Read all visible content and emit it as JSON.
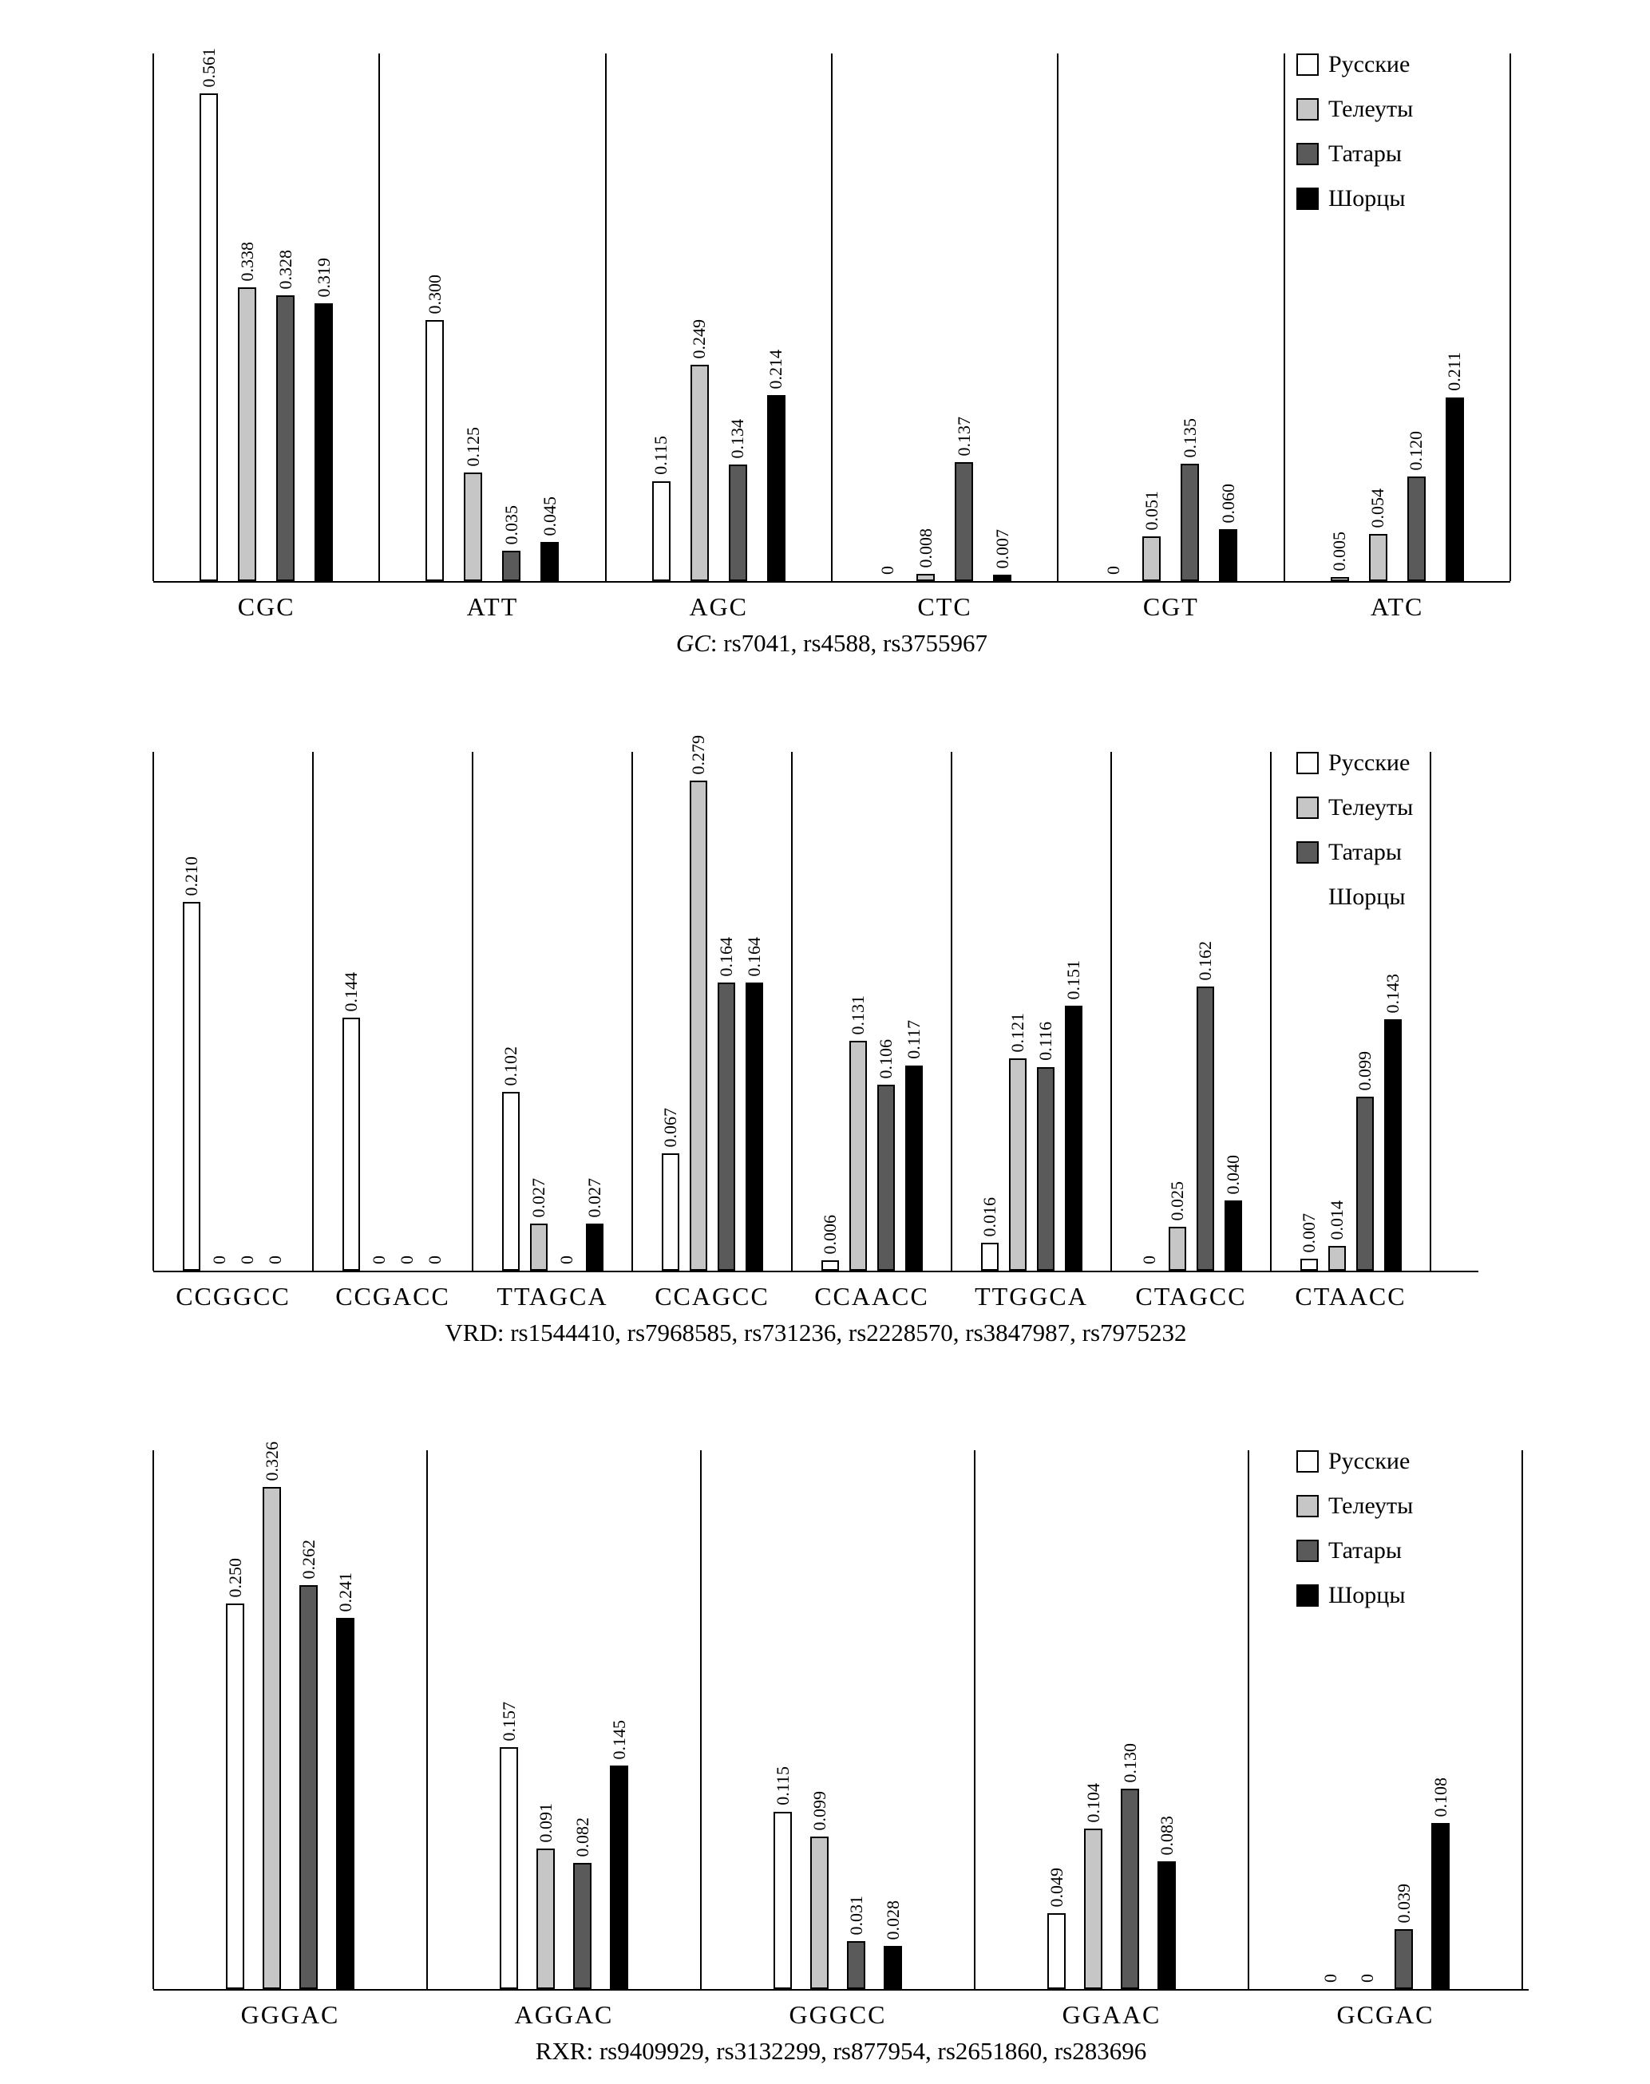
{
  "figure": {
    "background": "#ffffff",
    "populations": [
      "Русские",
      "Телеуты",
      "Татары",
      "Шорцы"
    ],
    "series_colors": [
      "#ffffff",
      "#c6c6c6",
      "#5a5a5a",
      "#000000"
    ]
  },
  "chart_data": [
    {
      "type": "bar",
      "subtitle_prefix": "GC",
      "subtitle_prefix_italic": true,
      "subtitle_rest": ": rs7041, rs4588, rs3755967",
      "categories": [
        "CGC",
        "ATT",
        "AGC",
        "CTC",
        "CGT",
        "ATC"
      ],
      "ylim": [
        0,
        0.6
      ],
      "grid": "vertical-separators",
      "legend": {
        "position": "top-right",
        "labels": [
          "Русские",
          "Телеуты",
          "Татары",
          "Шорцы"
        ],
        "swatches": [
          true,
          true,
          true,
          true
        ]
      },
      "series": [
        {
          "name": "Русские",
          "color": "#ffffff",
          "values": [
            0.561,
            0.3,
            0.115,
            0,
            0,
            0.005
          ],
          "labels": [
            "0.561",
            "0.300",
            "0.115",
            "0",
            "0",
            "0.005"
          ]
        },
        {
          "name": "Телеуты",
          "color": "#c6c6c6",
          "values": [
            0.338,
            0.125,
            0.249,
            0.008,
            0.051,
            0.054
          ],
          "labels": [
            "0.338",
            "0.125",
            "0.249",
            "0.008",
            "0.051",
            "0.054"
          ]
        },
        {
          "name": "Татары",
          "color": "#5a5a5a",
          "values": [
            0.328,
            0.035,
            0.134,
            0.137,
            0.135,
            0.12
          ],
          "labels": [
            "0.328",
            "0.035",
            "0.134",
            "0.137",
            "0.135",
            "0.120"
          ]
        },
        {
          "name": "Шорцы",
          "color": "#000000",
          "values": [
            0.319,
            0.045,
            0.214,
            0.007,
            0.06,
            0.211
          ],
          "labels": [
            "0.319",
            "0.045",
            "0.214",
            "0.007",
            "0.060",
            "0.211"
          ]
        }
      ]
    },
    {
      "type": "bar",
      "subtitle_prefix": "VRD",
      "subtitle_prefix_italic": false,
      "subtitle_rest": ": rs1544410, rs7968585, rs731236, rs2228570, rs3847987, rs7975232",
      "categories": [
        "CCGGCC",
        "CCGACC",
        "TTAGCA",
        "CCAGCC",
        "CCAACC",
        "TTGGCA",
        "CTAGCC",
        "CTAACC"
      ],
      "ylim": [
        0,
        0.3
      ],
      "grid": "vertical-separators",
      "legend": {
        "position": "top-right",
        "labels": [
          "Русские",
          "Телеуты",
          "Татары",
          "Шорцы"
        ],
        "swatches": [
          true,
          true,
          true,
          false
        ]
      },
      "series": [
        {
          "name": "Русские",
          "color": "#ffffff",
          "values": [
            0.21,
            0.144,
            0.102,
            0.067,
            0.006,
            0.016,
            0,
            0.007
          ],
          "labels": [
            "0.210",
            "0.144",
            "0.102",
            "0.067",
            "0.006",
            "0.016",
            "0",
            "0.007"
          ]
        },
        {
          "name": "Телеуты",
          "color": "#c6c6c6",
          "values": [
            0,
            0,
            0.027,
            0.279,
            0.131,
            0.121,
            0.025,
            0.014
          ],
          "labels": [
            "0",
            "0",
            "0.027",
            "0.279",
            "0.131",
            "0.121",
            "0.025",
            "0.014"
          ]
        },
        {
          "name": "Татары",
          "color": "#5a5a5a",
          "values": [
            0,
            0,
            0,
            0.164,
            0.106,
            0.116,
            0.162,
            0.099
          ],
          "labels": [
            "0",
            "0",
            "0",
            "0.164",
            "0.106",
            "0.116",
            "0.162",
            "0.099"
          ]
        },
        {
          "name": "Шорцы",
          "color": "#000000",
          "values": [
            0,
            0,
            0.027,
            0.164,
            0.117,
            0.151,
            0.04,
            0.143
          ],
          "labels": [
            "0",
            "0",
            "0.027",
            "0.164",
            "0.117",
            "0.151",
            "0.040",
            "0.143"
          ]
        }
      ]
    },
    {
      "type": "bar",
      "subtitle_prefix": "RXR",
      "subtitle_prefix_italic": false,
      "subtitle_rest": ": rs9409929, rs3132299, rs877954, rs2651860, rs283696",
      "categories": [
        "GGGAC",
        "AGGAC",
        "GGGCC",
        "GGAAC",
        "GCGAC"
      ],
      "ylim": [
        0,
        0.35
      ],
      "grid": "vertical-separators",
      "legend": {
        "position": "top-right",
        "labels": [
          "Русские",
          "Телеуты",
          "Татары",
          "Шорцы"
        ],
        "swatches": [
          true,
          true,
          true,
          true
        ]
      },
      "series": [
        {
          "name": "Русские",
          "color": "#ffffff",
          "values": [
            0.25,
            0.157,
            0.115,
            0.049,
            0
          ],
          "labels": [
            "0.250",
            "0.157",
            "0.115",
            "0.049",
            "0"
          ]
        },
        {
          "name": "Телеуты",
          "color": "#c6c6c6",
          "values": [
            0.326,
            0.091,
            0.099,
            0.104,
            0
          ],
          "labels": [
            "0.326",
            "0.091",
            "0.099",
            "0.104",
            "0"
          ]
        },
        {
          "name": "Татары",
          "color": "#5a5a5a",
          "values": [
            0.262,
            0.082,
            0.031,
            0.13,
            0.039
          ],
          "labels": [
            "0.262",
            "0.082",
            "0.031",
            "0.130",
            "0.039"
          ]
        },
        {
          "name": "Шорцы",
          "color": "#000000",
          "values": [
            0.241,
            0.145,
            0.028,
            0.083,
            0.108
          ],
          "labels": [
            "0.241",
            "0.145",
            "0.028",
            "0.083",
            "0.108"
          ]
        }
      ]
    }
  ]
}
